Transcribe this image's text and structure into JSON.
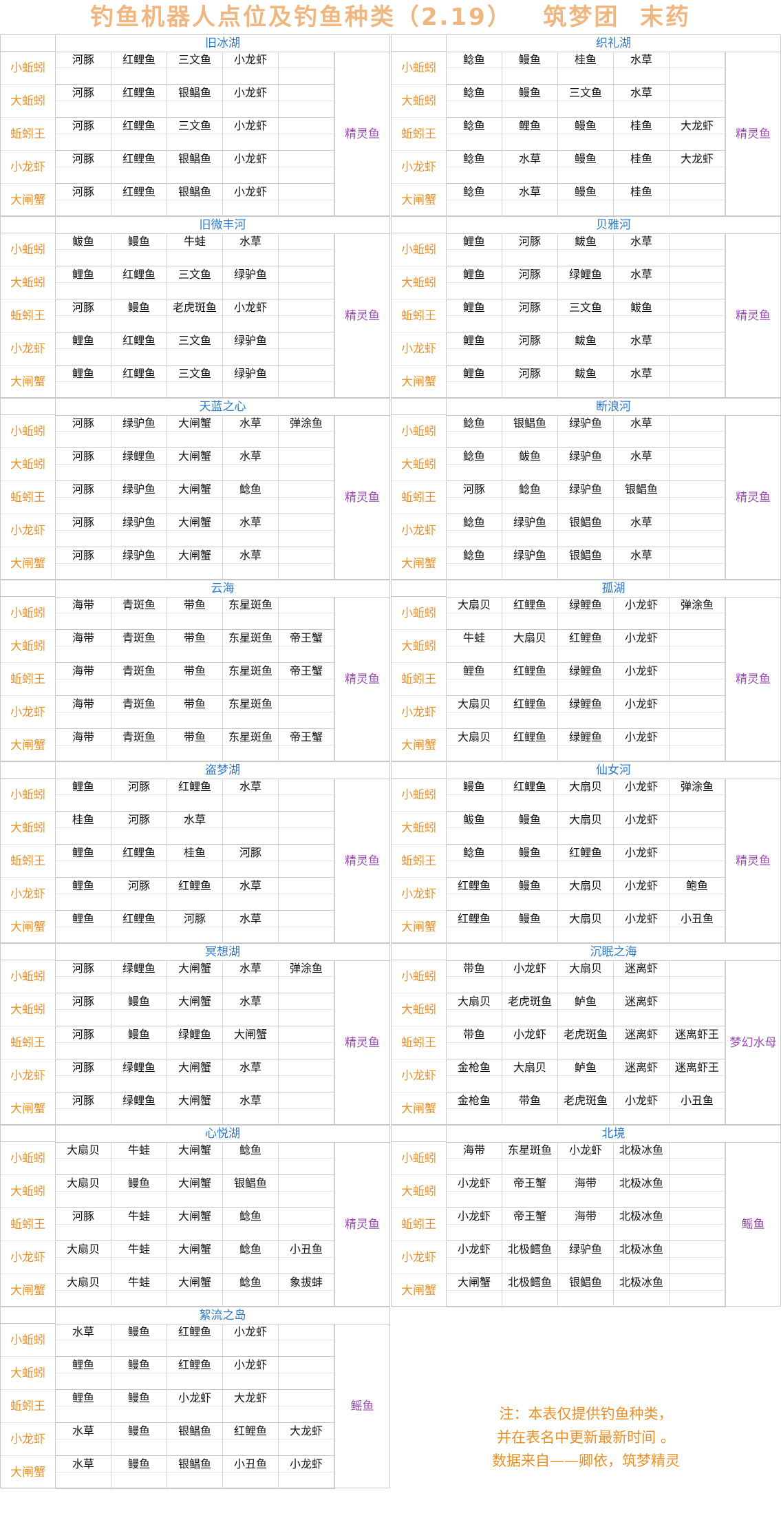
{
  "title": "钓鱼机器人点位及钓鱼种类（2.19）   筑梦团  末药",
  "bait_labels": [
    "小蚯蚓",
    "大蚯蚓",
    "蚯蚓王",
    "小龙虾",
    "大闸蟹"
  ],
  "note": [
    "注：本表仅提供钓鱼种类，",
    "并在表名中更新最新时间 。",
    "数据来自——卿依，筑梦精灵"
  ],
  "locations": [
    {
      "name": "旧冰湖",
      "special": "精灵鱼",
      "rows": [
        [
          "河豚",
          "红鲤鱼",
          "三文鱼",
          "小龙虾",
          ""
        ],
        [
          "河豚",
          "红鲤鱼",
          "银鲳鱼",
          "小龙虾",
          ""
        ],
        [
          "河豚",
          "红鲤鱼",
          "三文鱼",
          "小龙虾",
          ""
        ],
        [
          "河豚",
          "红鲤鱼",
          "银鲳鱼",
          "小龙虾",
          ""
        ],
        [
          "河豚",
          "红鲤鱼",
          "银鲳鱼",
          "小龙虾",
          ""
        ]
      ]
    },
    {
      "name": "织礼湖",
      "special": "精灵鱼",
      "rows": [
        [
          "鲶鱼",
          "鳗鱼",
          "桂鱼",
          "水草",
          ""
        ],
        [
          "鲶鱼",
          "鳗鱼",
          "三文鱼",
          "水草",
          ""
        ],
        [
          "鲶鱼",
          "鲤鱼",
          "鳗鱼",
          "桂鱼",
          "大龙虾"
        ],
        [
          "鲶鱼",
          "水草",
          "鳗鱼",
          "桂鱼",
          "大龙虾"
        ],
        [
          "鲶鱼",
          "水草",
          "鳗鱼",
          "桂鱼",
          ""
        ]
      ]
    },
    {
      "name": "旧微丰河",
      "special": "精灵鱼",
      "rows": [
        [
          "鲅鱼",
          "鳗鱼",
          "牛蛙",
          "水草",
          ""
        ],
        [
          "鲤鱼",
          "红鲤鱼",
          "三文鱼",
          "绿驴鱼",
          ""
        ],
        [
          "河豚",
          "鳗鱼",
          "老虎斑鱼",
          "小龙虾",
          ""
        ],
        [
          "鲤鱼",
          "红鲤鱼",
          "三文鱼",
          "绿驴鱼",
          ""
        ],
        [
          "鲤鱼",
          "红鲤鱼",
          "三文鱼",
          "绿驴鱼",
          ""
        ]
      ]
    },
    {
      "name": "贝雅河",
      "special": "精灵鱼",
      "rows": [
        [
          "鲤鱼",
          "河豚",
          "鲅鱼",
          "水草",
          ""
        ],
        [
          "鲤鱼",
          "河豚",
          "绿鲤鱼",
          "水草",
          ""
        ],
        [
          "鲤鱼",
          "河豚",
          "三文鱼",
          "鲅鱼",
          ""
        ],
        [
          "鲤鱼",
          "河豚",
          "鲅鱼",
          "水草",
          ""
        ],
        [
          "鲤鱼",
          "河豚",
          "鲅鱼",
          "水草",
          ""
        ]
      ]
    },
    {
      "name": "天蓝之心",
      "special": "精灵鱼",
      "rows": [
        [
          "河豚",
          "绿驴鱼",
          "大闸蟹",
          "水草",
          "弹涂鱼"
        ],
        [
          "河豚",
          "绿鲤鱼",
          "大闸蟹",
          "水草",
          ""
        ],
        [
          "河豚",
          "绿驴鱼",
          "大闸蟹",
          "鲶鱼",
          ""
        ],
        [
          "河豚",
          "绿驴鱼",
          "大闸蟹",
          "水草",
          ""
        ],
        [
          "河豚",
          "绿驴鱼",
          "大闸蟹",
          "水草",
          ""
        ]
      ]
    },
    {
      "name": "断浪河",
      "special": "精灵鱼",
      "rows": [
        [
          "鲶鱼",
          "银鲳鱼",
          "绿驴鱼",
          "水草",
          ""
        ],
        [
          "鲶鱼",
          "鲅鱼",
          "绿驴鱼",
          "水草",
          ""
        ],
        [
          "河豚",
          "鲶鱼",
          "绿驴鱼",
          "银鲳鱼",
          ""
        ],
        [
          "鲶鱼",
          "绿驴鱼",
          "银鲳鱼",
          "水草",
          ""
        ],
        [
          "鲶鱼",
          "绿驴鱼",
          "银鲳鱼",
          "水草",
          ""
        ]
      ]
    },
    {
      "name": "云海",
      "special": "精灵鱼",
      "rows": [
        [
          "海带",
          "青斑鱼",
          "带鱼",
          "东星斑鱼",
          ""
        ],
        [
          "海带",
          "青斑鱼",
          "带鱼",
          "东星斑鱼",
          "帝王蟹"
        ],
        [
          "海带",
          "青斑鱼",
          "带鱼",
          "东星斑鱼",
          "帝王蟹"
        ],
        [
          "海带",
          "青斑鱼",
          "带鱼",
          "东星斑鱼",
          ""
        ],
        [
          "海带",
          "青斑鱼",
          "带鱼",
          "东星斑鱼",
          "帝王蟹"
        ]
      ]
    },
    {
      "name": "孤湖",
      "special": "精灵鱼",
      "rows": [
        [
          "大扇贝",
          "红鲤鱼",
          "绿鲤鱼",
          "小龙虾",
          "弹涂鱼"
        ],
        [
          "牛蛙",
          "大扇贝",
          "红鲤鱼",
          "小龙虾",
          ""
        ],
        [
          "鲤鱼",
          "红鲤鱼",
          "绿鲤鱼",
          "小龙虾",
          ""
        ],
        [
          "大扇贝",
          "红鲤鱼",
          "绿鲤鱼",
          "小龙虾",
          ""
        ],
        [
          "大扇贝",
          "红鲤鱼",
          "绿鲤鱼",
          "小龙虾",
          ""
        ]
      ]
    },
    {
      "name": "盗梦湖",
      "special": "精灵鱼",
      "rows": [
        [
          "鲤鱼",
          "河豚",
          "红鲤鱼",
          "水草",
          ""
        ],
        [
          "桂鱼",
          "河豚",
          "水草",
          "",
          ""
        ],
        [
          "鲤鱼",
          "红鲤鱼",
          "桂鱼",
          "河豚",
          ""
        ],
        [
          "鲤鱼",
          "河豚",
          "红鲤鱼",
          "水草",
          ""
        ],
        [
          "鲤鱼",
          "红鲤鱼",
          "河豚",
          "水草",
          ""
        ]
      ]
    },
    {
      "name": "仙女河",
      "special": "精灵鱼",
      "rows": [
        [
          "鳗鱼",
          "红鲤鱼",
          "大扇贝",
          "小龙虾",
          "弹涂鱼"
        ],
        [
          "鲅鱼",
          "鳗鱼",
          "大扇贝",
          "小龙虾",
          ""
        ],
        [
          "鲶鱼",
          "鳗鱼",
          "红鲤鱼",
          "小龙虾",
          ""
        ],
        [
          "红鲤鱼",
          "鳗鱼",
          "大扇贝",
          "小龙虾",
          "鲍鱼"
        ],
        [
          "红鲤鱼",
          "鳗鱼",
          "大扇贝",
          "小龙虾",
          "小丑鱼"
        ]
      ]
    },
    {
      "name": "冥想湖",
      "special": "精灵鱼",
      "rows": [
        [
          "河豚",
          "绿鲤鱼",
          "大闸蟹",
          "水草",
          "弹涂鱼"
        ],
        [
          "河豚",
          "鳗鱼",
          "大闸蟹",
          "水草",
          ""
        ],
        [
          "河豚",
          "鳗鱼",
          "绿鲤鱼",
          "大闸蟹",
          ""
        ],
        [
          "河豚",
          "绿鲤鱼",
          "大闸蟹",
          "水草",
          ""
        ],
        [
          "河豚",
          "绿鲤鱼",
          "大闸蟹",
          "水草",
          ""
        ]
      ]
    },
    {
      "name": "沉眠之海",
      "special": "梦幻水母",
      "rows": [
        [
          "带鱼",
          "小龙虾",
          "大扇贝",
          "迷离虾",
          ""
        ],
        [
          "大扇贝",
          "老虎斑鱼",
          "鲈鱼",
          "迷离虾",
          ""
        ],
        [
          "带鱼",
          "小龙虾",
          "老虎斑鱼",
          "迷离虾",
          "迷离虾王"
        ],
        [
          "金枪鱼",
          "大扇贝",
          "鲈鱼",
          "迷离虾",
          "迷离虾王"
        ],
        [
          "金枪鱼",
          "带鱼",
          "老虎斑鱼",
          "小龙虾",
          "小丑鱼"
        ]
      ]
    },
    {
      "name": "心悦湖",
      "special": "精灵鱼",
      "rows": [
        [
          "大扇贝",
          "牛蛙",
          "大闸蟹",
          "鲶鱼",
          ""
        ],
        [
          "大扇贝",
          "鳗鱼",
          "大闸蟹",
          "银鲳鱼",
          ""
        ],
        [
          "河豚",
          "牛蛙",
          "大闸蟹",
          "鲶鱼",
          ""
        ],
        [
          "大扇贝",
          "牛蛙",
          "大闸蟹",
          "鲶鱼",
          "小丑鱼"
        ],
        [
          "大扇贝",
          "牛蛙",
          "大闸蟹",
          "鲶鱼",
          "象拔蚌"
        ]
      ]
    },
    {
      "name": "北境",
      "special": "鳐鱼",
      "rows": [
        [
          "海带",
          "东星斑鱼",
          "小龙虾",
          "北极冰鱼",
          ""
        ],
        [
          "小龙虾",
          "帝王蟹",
          "海带",
          "北极冰鱼",
          ""
        ],
        [
          "小龙虾",
          "帝王蟹",
          "海带",
          "北极冰鱼",
          ""
        ],
        [
          "小龙虾",
          "北极鳕鱼",
          "绿驴鱼",
          "北极冰鱼",
          ""
        ],
        [
          "大闸蟹",
          "北极鳕鱼",
          "银鲳鱼",
          "北极冰鱼",
          ""
        ]
      ]
    },
    {
      "name": "絮流之岛",
      "special": "鳐鱼",
      "rows": [
        [
          "水草",
          "鳗鱼",
          "红鲤鱼",
          "小龙虾",
          ""
        ],
        [
          "鲤鱼",
          "鳗鱼",
          "红鲤鱼",
          "小龙虾",
          ""
        ],
        [
          "鲤鱼",
          "鳗鱼",
          "小龙虾",
          "大龙虾",
          ""
        ],
        [
          "水草",
          "鳗鱼",
          "银鲳鱼",
          "红鲤鱼",
          "大龙虾"
        ],
        [
          "水草",
          "鳗鱼",
          "银鲳鱼",
          "小丑鱼",
          "小龙虾"
        ]
      ]
    }
  ]
}
